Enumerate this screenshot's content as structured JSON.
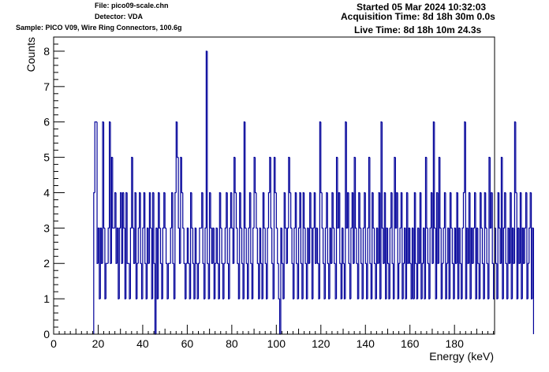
{
  "header": {
    "file": "File: pico09-scale.chn",
    "detector": "Detector: VDA",
    "sample": "Sample: PICO V09, Wire Ring Connectors, 100.6g",
    "started": "Started 05 Mar 2024 10:32:03",
    "acquisition_time": "Acquisition Time: 8d 18h 30m 0.0s",
    "live_time": "Live Time: 8d 18h 10m 24.3s"
  },
  "chart_data": {
    "type": "histogram",
    "xlabel": "Energy (keV)",
    "ylabel": "Counts",
    "xlim": [
      0,
      198
    ],
    "ylim": [
      0,
      8.4
    ],
    "x_ticks": [
      0,
      20,
      40,
      60,
      80,
      100,
      120,
      140,
      160,
      180
    ],
    "y_ticks": [
      0,
      1,
      2,
      3,
      4,
      5,
      6,
      7,
      8
    ],
    "grid": false,
    "line_color": "#000099",
    "frame_color": "#000000",
    "bin_width": 0.5,
    "x_start": 18,
    "counts": [
      4,
      6,
      6,
      2,
      3,
      1,
      3,
      2,
      6,
      3,
      1,
      2,
      2,
      3,
      6,
      2,
      5,
      3,
      3,
      4,
      2,
      3,
      1,
      3,
      4,
      2,
      4,
      3,
      1,
      4,
      2,
      2,
      1,
      3,
      5,
      3,
      2,
      4,
      1,
      2,
      3,
      4,
      2,
      1,
      3,
      4,
      2,
      1,
      3,
      2,
      4,
      3,
      1,
      4,
      2,
      0,
      3,
      1,
      4,
      3,
      2,
      1,
      3,
      4,
      3,
      2,
      1,
      2,
      2,
      3,
      4,
      2,
      1,
      4,
      6,
      5,
      3,
      2,
      5,
      4,
      3,
      2,
      1,
      2,
      3,
      2,
      1,
      4,
      3,
      2,
      1,
      3,
      2,
      1,
      2,
      3,
      3,
      4,
      2,
      1,
      3,
      8,
      2,
      1,
      4,
      3,
      2,
      3,
      1,
      2,
      3,
      2,
      1,
      4,
      3,
      2,
      1,
      2,
      3,
      4,
      2,
      1,
      3,
      4,
      3,
      2,
      5,
      4,
      3,
      2,
      1,
      4,
      3,
      2,
      1,
      6,
      3,
      2,
      1,
      3,
      4,
      2,
      1,
      3,
      5,
      4,
      3,
      2,
      1,
      3,
      2,
      1,
      4,
      3,
      2,
      1,
      3,
      4,
      5,
      3,
      2,
      1,
      5,
      4,
      3,
      2,
      1,
      0,
      3,
      2,
      1,
      4,
      3,
      2,
      3,
      5,
      4,
      3,
      2,
      1,
      3,
      4,
      2,
      1,
      3,
      4,
      2,
      1,
      4,
      3,
      2,
      1,
      3,
      2,
      4,
      3,
      1,
      3,
      4,
      2,
      3,
      2,
      1,
      6,
      4,
      3,
      2,
      1,
      3,
      4,
      2,
      1,
      3,
      2,
      4,
      3,
      2,
      1,
      5,
      3,
      4,
      2,
      1,
      3,
      2,
      1,
      6,
      3,
      4,
      2,
      1,
      3,
      4,
      2,
      5,
      3,
      2,
      1,
      4,
      3,
      2,
      1,
      3,
      4,
      2,
      1,
      3,
      5,
      2,
      1,
      4,
      3,
      2,
      1,
      3,
      2,
      4,
      1,
      6,
      3,
      2,
      4,
      1,
      3,
      2,
      1,
      3,
      4,
      2,
      1,
      5,
      3,
      4,
      1,
      2,
      3,
      4,
      1,
      2,
      3,
      1,
      4,
      2,
      3,
      2,
      1,
      3,
      1,
      4,
      2,
      1,
      3,
      2,
      4,
      1,
      2,
      3,
      1,
      5,
      3,
      2,
      1,
      3,
      4,
      2,
      6,
      3,
      1,
      4,
      2,
      5,
      3,
      1,
      2,
      3,
      4,
      1,
      2,
      3,
      1,
      4,
      3,
      2,
      1,
      3,
      2,
      4,
      1,
      3,
      2,
      1,
      3,
      4,
      6,
      1,
      3,
      2,
      4,
      1,
      3,
      2,
      3,
      4,
      1,
      3,
      2,
      1,
      4,
      3,
      2,
      1,
      4,
      3,
      2,
      1,
      5,
      3,
      4,
      2,
      1,
      3,
      2,
      1,
      4,
      3,
      2,
      5,
      1,
      3,
      4,
      2,
      1,
      3,
      2,
      4,
      1,
      3,
      2,
      6,
      4,
      1,
      3,
      2,
      4,
      1,
      3,
      2,
      3,
      4,
      1,
      2,
      3,
      4,
      1,
      3
    ]
  }
}
